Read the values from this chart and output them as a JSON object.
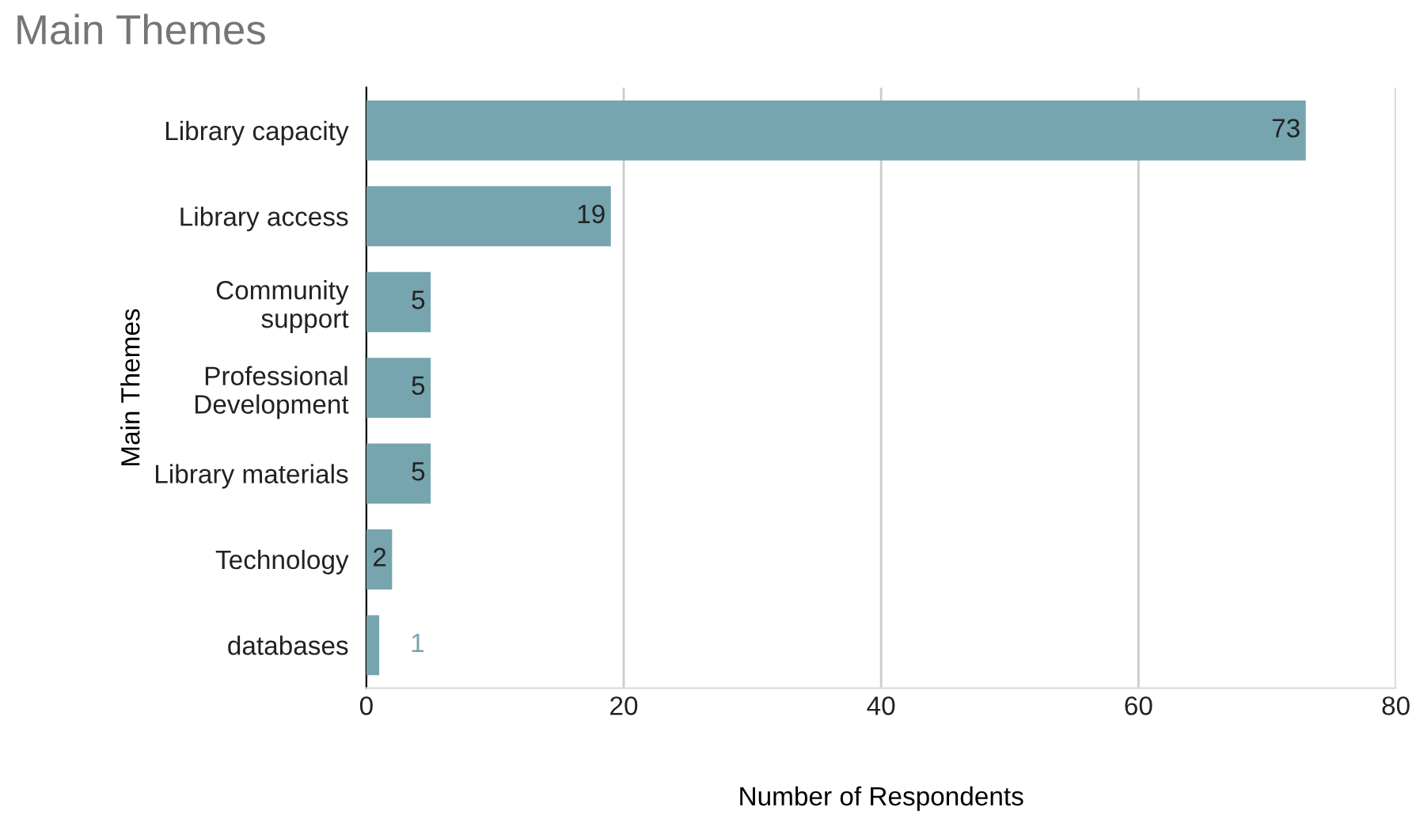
{
  "chart_data": {
    "type": "bar",
    "orientation": "horizontal",
    "title": "Main Themes",
    "xlabel": "Number of Respondents",
    "ylabel": "Main Themes",
    "categories": [
      "Library capacity",
      "Library access",
      "Community\nsupport",
      "Professional\nDevelopment",
      "Library materials",
      "Technology",
      "databases"
    ],
    "values": [
      73,
      19,
      5,
      5,
      5,
      2,
      1
    ],
    "color": "#76a5af",
    "xlim": [
      0,
      80
    ],
    "xticks": [
      0,
      20,
      40,
      60,
      80
    ],
    "grid": "x",
    "data_labels": true
  }
}
